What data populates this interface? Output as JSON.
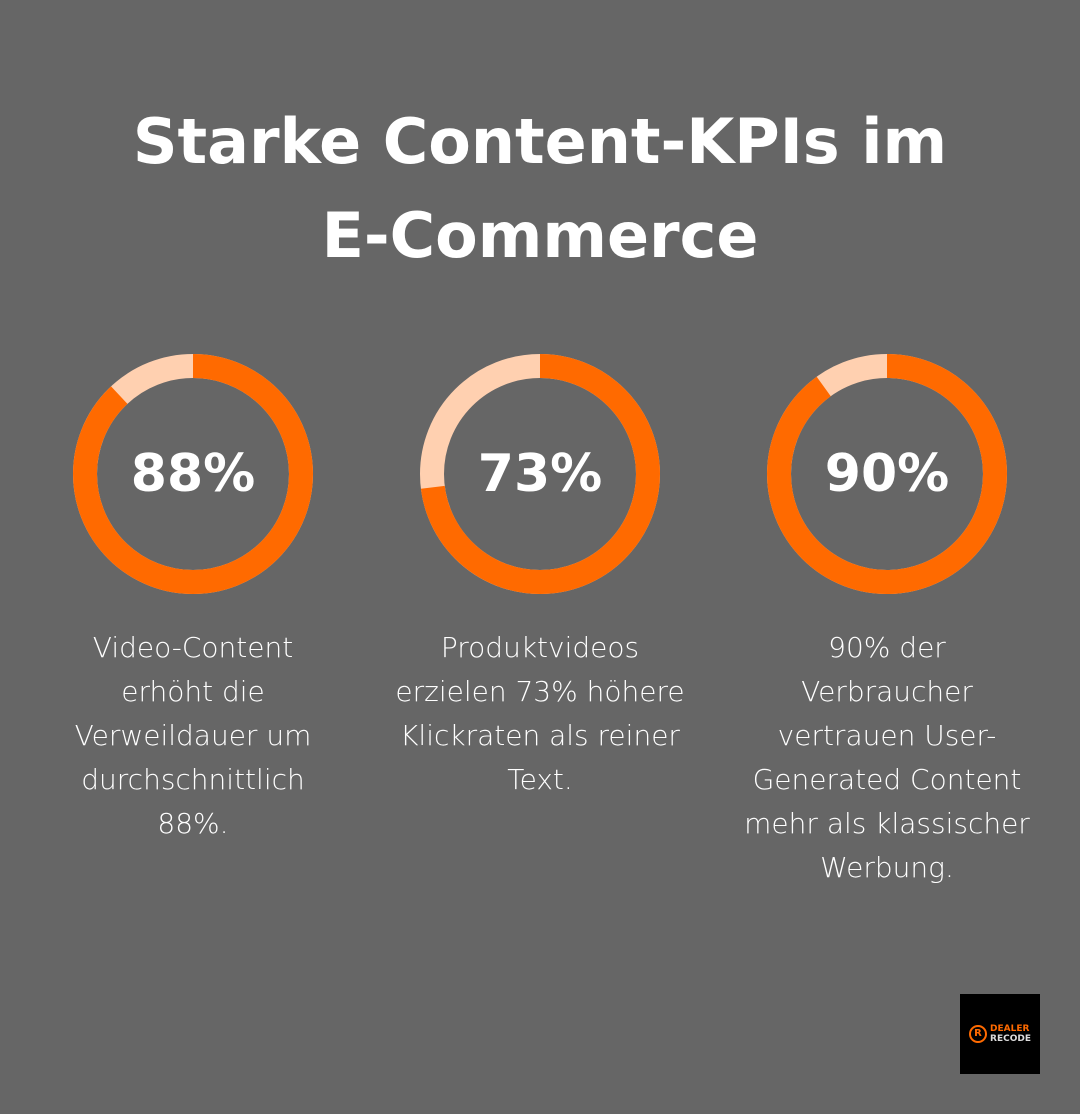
{
  "title_line1": "Starke Content-KPIs im",
  "title_line2": "E-Commerce",
  "chart_data": {
    "type": "pie",
    "variant": "donut",
    "colors": {
      "filled": "#ff6a00",
      "remainder": "#ffd0b0"
    },
    "items": [
      {
        "value": 88,
        "label": "88%",
        "description": "Video-Content erhöht die Verweildauer um durchschnittlich 88%."
      },
      {
        "value": 73,
        "label": "73%",
        "description": "Produktvideos erzielen 73% höhere Klickraten als reiner Text."
      },
      {
        "value": 90,
        "label": "90%",
        "description": "90% der Verbraucher vertrauen User-Generated Content mehr als klassischer Werbung."
      }
    ]
  },
  "logo": {
    "line1": "DEALER",
    "line2": "RECODE",
    "mark": "R"
  }
}
